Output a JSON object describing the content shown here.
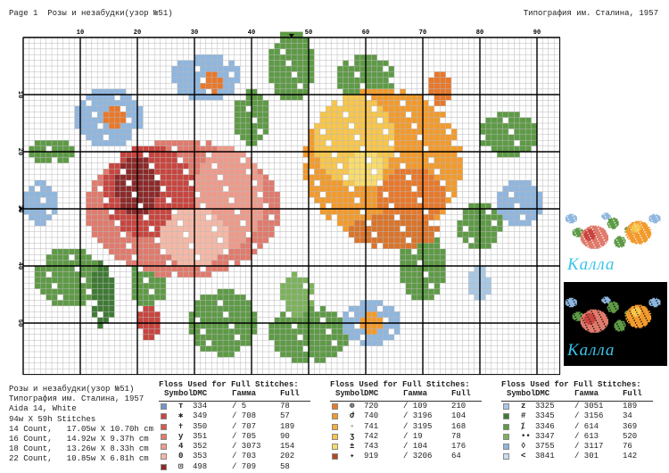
{
  "header": {
    "left": "Page 1  Розы и незабудки(узор №51)",
    "right": "Типография им. Сталина, 1957"
  },
  "grid": {
    "column_labels": [
      "10",
      "20",
      "30",
      "40",
      "50",
      "60",
      "70",
      "80",
      "90"
    ],
    "row_labels": [
      "10",
      "20",
      "30",
      "40",
      "50"
    ]
  },
  "thumbnails": [
    {
      "caption": "Калла"
    },
    {
      "caption": "Калла"
    }
  ],
  "info": [
    "Розы и незабудки(узор №51)",
    "Типография им. Сталина, 1957",
    "Aida 14, White",
    "94w X 59h Stitches",
    "14 Count,   17.05w X 10.70h cm",
    "16 Count,   14.92w X 9.37h cm",
    "18 Count,   13.26w X 8.33h cm",
    "22 Count,   10.85w X 6.81h cm"
  ],
  "floss_tables": [
    {
      "title": "Floss Used for Full Stitches:",
      "columns": [
        "Symbol",
        "DMC",
        "Гамма",
        "Full"
      ],
      "rows": [
        {
          "color": "#6f97c8",
          "symbol": "т",
          "dmc": "334",
          "gamma": "/ 5",
          "full": "78"
        },
        {
          "color": "#c8453f",
          "symbol": "✱",
          "dmc": "349",
          "gamma": "/ 708",
          "full": "57"
        },
        {
          "color": "#d35a50",
          "symbol": "✝",
          "dmc": "350",
          "gamma": "/ 707",
          "full": "189"
        },
        {
          "color": "#e07a6c",
          "symbol": "у",
          "dmc": "351",
          "gamma": "/ 705",
          "full": "90"
        },
        {
          "color": "#ee9a8a",
          "symbol": "4",
          "dmc": "352",
          "gamma": "/ 3073",
          "full": "154"
        },
        {
          "color": "#f5b8a6",
          "symbol": "0",
          "dmc": "353",
          "gamma": "/ 703",
          "full": "202"
        },
        {
          "color": "#8c2a2a",
          "symbol": "⊡",
          "dmc": "498",
          "gamma": "/ 709",
          "full": "58"
        }
      ]
    },
    {
      "title": "Floss Used for Full Stitches:",
      "columns": [
        "Symbol",
        "DMC",
        "Гамма",
        "Full"
      ],
      "rows": [
        {
          "color": "#e8782a",
          "symbol": "⊕",
          "dmc": "720",
          "gamma": "/ 109",
          "full": "210"
        },
        {
          "color": "#f29a2c",
          "symbol": "ժ",
          "dmc": "740",
          "gamma": "/ 3196",
          "full": "104"
        },
        {
          "color": "#f6ae3a",
          "symbol": "◦",
          "dmc": "741",
          "gamma": "/ 3195",
          "full": "168"
        },
        {
          "color": "#f8c64c",
          "symbol": "ʒ",
          "dmc": "742",
          "gamma": "/ 19",
          "full": "78"
        },
        {
          "color": "#f9dc6c",
          "symbol": "±",
          "dmc": "743",
          "gamma": "/ 104",
          "full": "176"
        },
        {
          "color": "#b04a1e",
          "symbol": "✦",
          "dmc": "919",
          "gamma": "/ 3206",
          "full": "64"
        }
      ]
    },
    {
      "title": "Floss Used for Full Stitches:",
      "columns": [
        "Symbol",
        "DMC",
        "Гамма",
        "Full"
      ],
      "rows": [
        {
          "color": "#a9c8e6",
          "symbol": "z",
          "dmc": "3325",
          "gamma": "/ 3051",
          "full": "189"
        },
        {
          "color": "#3f7a34",
          "symbol": "#",
          "dmc": "3345",
          "gamma": "/ 3156",
          "full": "34"
        },
        {
          "color": "#5e9a46",
          "symbol": "⁒",
          "dmc": "3346",
          "gamma": "/ 614",
          "full": "369"
        },
        {
          "color": "#7cb25c",
          "symbol": "••",
          "dmc": "3347",
          "gamma": "/ 613",
          "full": "520"
        },
        {
          "color": "#8fb6de",
          "symbol": "◊",
          "dmc": "3755",
          "gamma": "/ 3117",
          "full": "76"
        },
        {
          "color": "#c9def0",
          "symbol": "<",
          "dmc": "3841",
          "gamma": "/ 301",
          "full": "142"
        }
      ]
    }
  ]
}
